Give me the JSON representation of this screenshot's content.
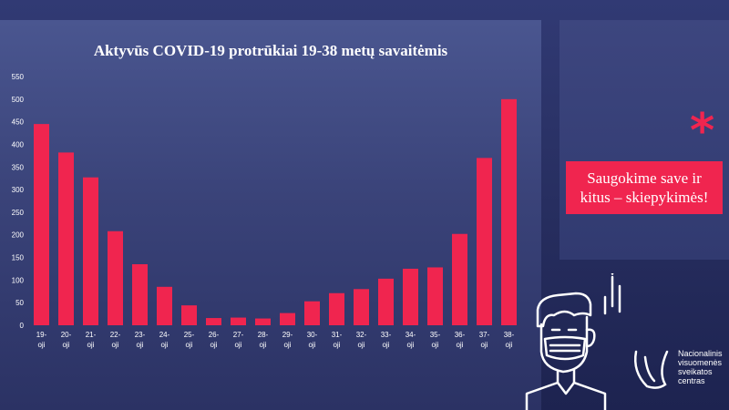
{
  "chart_data": {
    "type": "bar",
    "title": "Aktyvūs COVID-19 protrūkiai 19-38 metų savaitėmis",
    "xlabel": "",
    "ylabel": "",
    "ylim": [
      0,
      550
    ],
    "yticks": [
      0,
      50,
      100,
      150,
      200,
      250,
      300,
      350,
      400,
      450,
      500,
      550
    ],
    "categories": [
      [
        "19-",
        "oji"
      ],
      [
        "20-",
        "oji"
      ],
      [
        "21-",
        "oji"
      ],
      [
        "22-",
        "oji"
      ],
      [
        "23-",
        "oji"
      ],
      [
        "24-",
        "oji"
      ],
      [
        "25-",
        "oji"
      ],
      [
        "26-",
        "oji"
      ],
      [
        "27-",
        "oji"
      ],
      [
        "28-",
        "oji"
      ],
      [
        "29-",
        "oji"
      ],
      [
        "30-",
        "oji"
      ],
      [
        "31-",
        "oji"
      ],
      [
        "32-",
        "oji"
      ],
      [
        "33-",
        "oji"
      ],
      [
        "34-",
        "oji"
      ],
      [
        "35-",
        "oji"
      ],
      [
        "36-",
        "oji"
      ],
      [
        "37-",
        "oji"
      ],
      [
        "38-",
        "oji"
      ]
    ],
    "values": [
      445,
      382,
      327,
      208,
      135,
      85,
      44,
      16,
      17,
      15,
      27,
      53,
      71,
      80,
      103,
      125,
      128,
      202,
      370,
      500
    ],
    "grid": false,
    "bar_color": "#f0254f"
  },
  "side": {
    "message_line1": "Saugokime save ir",
    "message_line2": "kitus – skiepykimės!",
    "asterisk": "*",
    "accent_color": "#f0254f"
  },
  "logo": {
    "line1": "Nacionalinis",
    "line2": "visuomenės",
    "line3": "sveikatos",
    "line4": "centras"
  }
}
